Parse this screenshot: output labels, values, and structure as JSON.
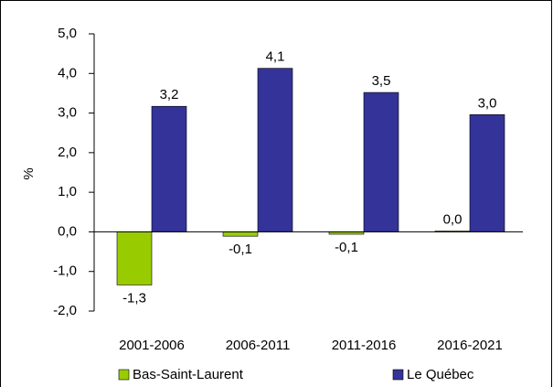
{
  "chart_data": {
    "type": "bar",
    "y_label": "%",
    "categories": [
      "2001-2006",
      "2006-2011",
      "2011-2016",
      "2016-2021"
    ],
    "series": [
      {
        "name": "Bas-Saint-Laurent",
        "color": "#99cc00",
        "values": [
          -1.34,
          -0.11,
          -0.06,
          0.02
        ],
        "value_labels": [
          "-1,3",
          "-0,1",
          "-0,1",
          "0,0"
        ]
      },
      {
        "name": "Le Québec",
        "color": "#333399",
        "values": [
          3.17,
          4.13,
          3.52,
          2.96
        ],
        "value_labels": [
          "3,2",
          "4,1",
          "3,5",
          "3,0"
        ]
      }
    ],
    "ylim": [
      -2,
      5
    ],
    "yticks": [
      {
        "value": -2,
        "label": "-2,0"
      },
      {
        "value": -1,
        "label": "-1,0"
      },
      {
        "value": 0,
        "label": "0,0"
      },
      {
        "value": 1,
        "label": "1,0"
      },
      {
        "value": 2,
        "label": "2,0"
      },
      {
        "value": 3,
        "label": "3,0"
      },
      {
        "value": 4,
        "label": "4,0"
      },
      {
        "value": 5,
        "label": "5,0"
      }
    ],
    "grid": false
  }
}
